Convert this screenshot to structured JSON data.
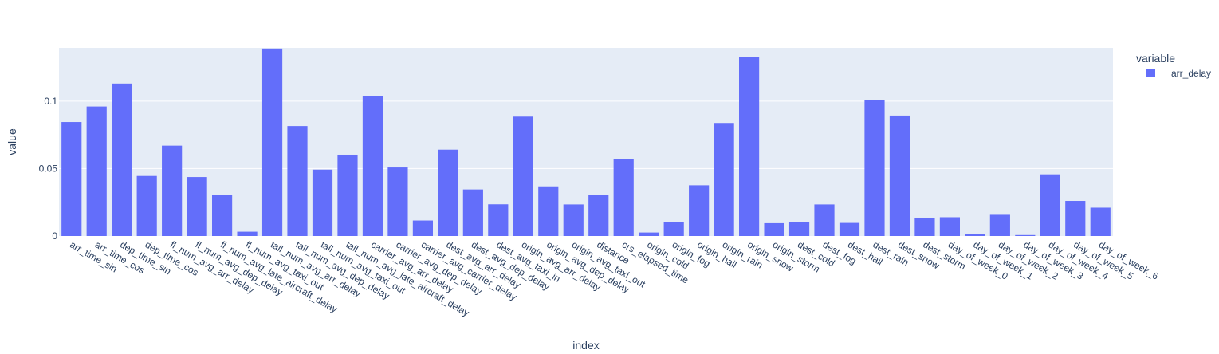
{
  "chart_data": {
    "type": "bar",
    "xlabel": "index",
    "ylabel": "value",
    "ylim": [
      0,
      0.1395
    ],
    "yticks": [
      0,
      0.05,
      0.1
    ],
    "ytick_labels": [
      "0",
      "0.05",
      "0.1"
    ],
    "grid": true,
    "legend": {
      "title": "variable",
      "placement": "top-right"
    },
    "colors": {
      "bar": "#636efa",
      "plot_bg": "#e5ecf6",
      "grid": "#ffffff",
      "text": "#2a3f5f"
    },
    "categories": [
      "arr_time_sin",
      "arr_time_cos",
      "dep_time_sin",
      "dep_time_cos",
      "fl_num_avg_arr_delay",
      "fl_num_avg_dep_delay",
      "fl_num_avg_late_aircraft_delay",
      "fl_num_avg_taxi_out",
      "tail_num_avg_arr_delay",
      "tail_num_avg_dep_delay",
      "tail_num_avg_taxi_out",
      "tail_num_avg_late_aircraft_delay",
      "carrier_avg_arr_delay",
      "carrier_avg_dep_delay",
      "carrier_avg_carrier_delay",
      "dest_avg_arr_delay",
      "dest_avg_dep_delay",
      "dest_avg_taxi_in",
      "origin_avg_arr_delay",
      "origin_avg_dep_delay",
      "origin_avg_taxi_out",
      "distance",
      "crs_elapsed_time",
      "origin_cold",
      "origin_fog",
      "origin_hail",
      "origin_rain",
      "origin_snow",
      "origin_storm",
      "dest_cold",
      "dest_fog",
      "dest_hail",
      "dest_rain",
      "dest_snow",
      "dest_storm",
      "day_of_week_0",
      "day_of_week_1",
      "day_of_week_2",
      "day_of_week_3",
      "day_of_week_4",
      "day_of_week_5",
      "day_of_week_6"
    ],
    "series": [
      {
        "name": "arr_delay",
        "values": [
          0.0845,
          0.096,
          0.113,
          0.0445,
          0.067,
          0.0437,
          0.0303,
          0.0032,
          0.139,
          0.0815,
          0.0492,
          0.0603,
          0.104,
          0.0508,
          0.0115,
          0.064,
          0.0345,
          0.0235,
          0.0885,
          0.0368,
          0.0234,
          0.0307,
          0.057,
          0.0026,
          0.0102,
          0.0376,
          0.0838,
          0.1325,
          0.0095,
          0.0104,
          0.0234,
          0.0097,
          0.1005,
          0.0893,
          0.0136,
          0.0139,
          0.0013,
          0.0157,
          0.0007,
          0.0457,
          0.026,
          0.021
        ]
      }
    ]
  }
}
